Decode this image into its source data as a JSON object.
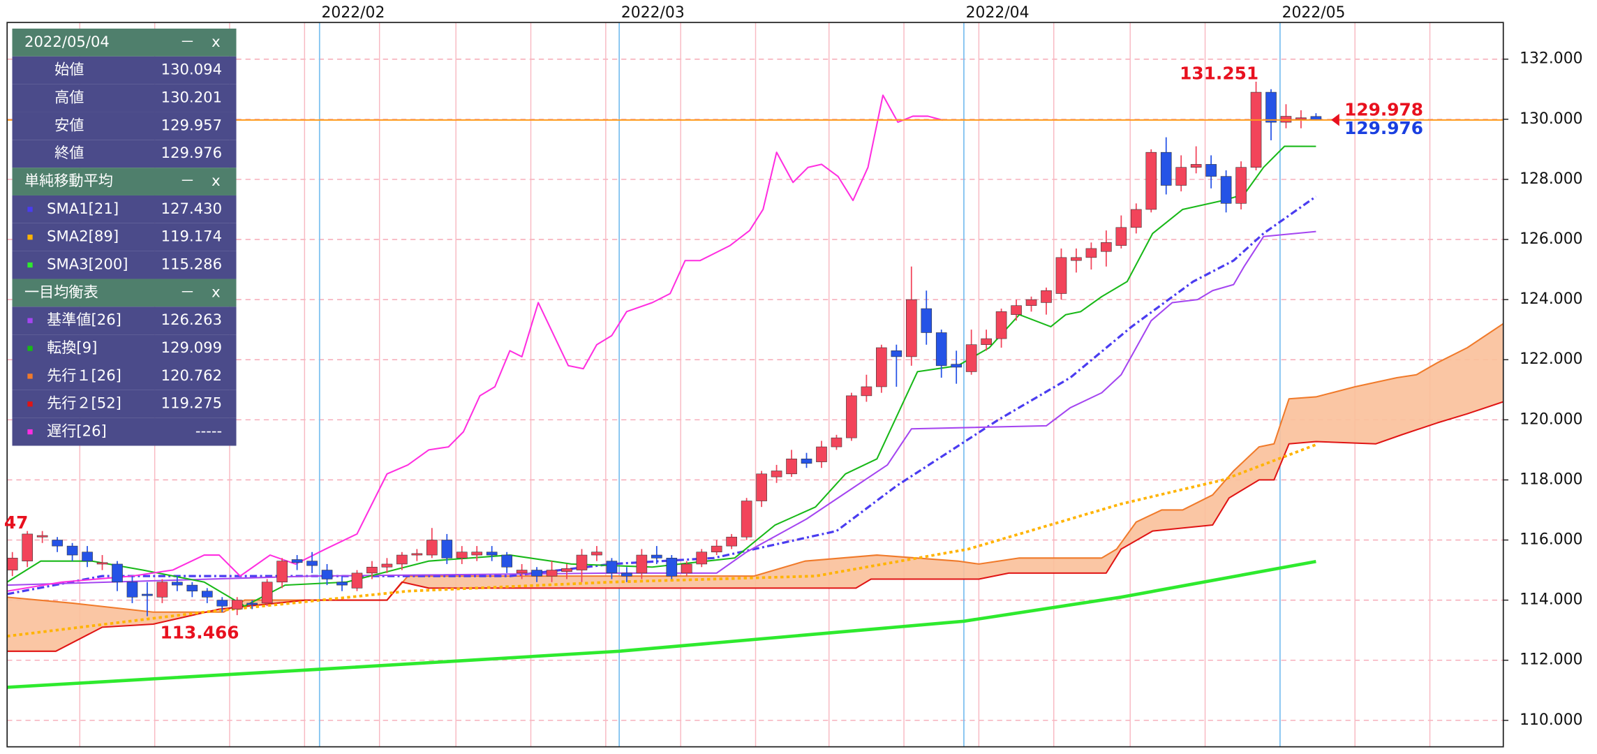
{
  "chart_data": {
    "type": "candlestick",
    "up_color": "#f2445a",
    "down_color": "#2553e6",
    "grid": true,
    "xlim": [
      -0.35,
      99.5
    ],
    "ylim": [
      109.12,
      133.22
    ],
    "xticks": [
      {
        "value": 20.5,
        "label": "2022/02"
      },
      {
        "value": 40.5,
        "label": "2022/03"
      },
      {
        "value": 63.5,
        "label": "2022/04"
      },
      {
        "value": 84.6,
        "label": "2022/05"
      }
    ],
    "xgrid": [
      4.5,
      9.5,
      14.5,
      19.5,
      24.5,
      29.6,
      34.6,
      39.6,
      44.6,
      49.6,
      54.5,
      59.5,
      64.5,
      69.5,
      74.6,
      79.6,
      89.6,
      94.6
    ],
    "yticks": [
      {
        "value": 110,
        "label": "110.000"
      },
      {
        "value": 112,
        "label": "112.000"
      },
      {
        "value": 114,
        "label": "114.000"
      },
      {
        "value": 116,
        "label": "116.000"
      },
      {
        "value": 118,
        "label": "118.000"
      },
      {
        "value": 120,
        "label": "120.000"
      },
      {
        "value": 122,
        "label": "122.000"
      },
      {
        "value": 124,
        "label": "124.000"
      },
      {
        "value": 126,
        "label": "126.000"
      },
      {
        "value": 128,
        "label": "128.000"
      },
      {
        "value": 130,
        "label": "130.000"
      },
      {
        "value": 132,
        "label": "132.000"
      }
    ],
    "x": [
      0,
      1,
      2,
      3,
      4,
      5,
      6,
      7,
      8,
      9,
      10,
      11,
      12,
      13,
      14,
      15,
      16,
      17,
      18,
      19,
      20,
      21,
      22,
      23,
      24,
      25,
      26,
      27,
      28,
      29,
      30,
      31,
      32,
      33,
      34,
      35,
      36,
      37,
      38,
      39,
      40,
      41,
      42,
      43,
      44,
      45,
      46,
      47,
      48,
      49,
      50,
      51,
      52,
      53,
      54,
      55,
      56,
      57,
      58,
      59,
      60,
      61,
      62,
      63,
      64,
      65,
      66,
      67,
      68,
      69,
      70,
      71,
      72,
      73,
      74,
      75,
      76,
      77,
      78,
      79,
      80,
      81,
      82,
      83,
      84,
      85,
      86,
      87
    ],
    "open": [
      115.0,
      115.3,
      116.1,
      116.0,
      115.8,
      115.6,
      115.2,
      115.2,
      114.6,
      114.2,
      114.1,
      114.6,
      114.5,
      114.3,
      114.0,
      113.7,
      113.9,
      113.9,
      114.6,
      115.35,
      115.3,
      115.0,
      114.6,
      114.4,
      114.9,
      115.1,
      115.2,
      115.5,
      115.5,
      116.0,
      115.4,
      115.5,
      115.6,
      115.5,
      114.9,
      115.0,
      114.8,
      114.95,
      115.0,
      115.5,
      115.3,
      114.9,
      114.9,
      115.5,
      115.4,
      114.9,
      115.2,
      115.6,
      115.8,
      116.1,
      117.3,
      118.1,
      118.2,
      118.7,
      118.6,
      119.1,
      119.4,
      120.8,
      121.1,
      122.3,
      122.1,
      123.7,
      122.9,
      121.85,
      121.6,
      122.5,
      122.7,
      123.5,
      123.8,
      123.9,
      124.2,
      125.3,
      125.4,
      125.6,
      125.8,
      126.4,
      127.0,
      128.9,
      127.8,
      128.4,
      128.5,
      128.1,
      127.2,
      128.4,
      130.9,
      129.9,
      130.0,
      130.094
    ],
    "high": [
      115.6,
      116.3,
      116.3,
      116.1,
      115.9,
      115.8,
      115.5,
      115.3,
      114.8,
      114.6,
      114.7,
      114.8,
      114.6,
      114.4,
      114.1,
      114.1,
      114.0,
      114.7,
      115.4,
      115.5,
      115.6,
      115.2,
      114.8,
      115.0,
      115.3,
      115.4,
      115.6,
      115.7,
      116.4,
      116.2,
      115.8,
      115.8,
      115.8,
      115.6,
      115.2,
      115.1,
      115.3,
      115.2,
      115.7,
      115.8,
      115.4,
      115.1,
      115.7,
      115.8,
      115.5,
      115.3,
      115.7,
      116.0,
      116.2,
      117.4,
      118.3,
      118.5,
      119.0,
      118.9,
      119.3,
      119.5,
      120.9,
      121.5,
      122.5,
      122.5,
      125.1,
      124.3,
      123.0,
      122.3,
      123.0,
      123.0,
      123.7,
      124.0,
      124.1,
      124.4,
      125.7,
      125.7,
      125.9,
      126.3,
      126.8,
      127.2,
      129.0,
      129.4,
      128.8,
      129.1,
      128.8,
      128.3,
      128.6,
      131.251,
      131.0,
      130.5,
      130.3,
      130.201
    ],
    "low": [
      114.8,
      115.1,
      115.9,
      115.6,
      115.3,
      115.1,
      115.0,
      114.3,
      113.9,
      113.466,
      113.9,
      114.3,
      114.1,
      113.9,
      113.6,
      113.5,
      113.7,
      113.8,
      114.4,
      115.0,
      114.9,
      114.5,
      114.3,
      114.3,
      114.7,
      114.9,
      115.0,
      115.3,
      115.4,
      115.2,
      115.2,
      115.3,
      115.3,
      114.9,
      114.7,
      114.6,
      114.6,
      114.7,
      114.6,
      115.3,
      114.7,
      114.6,
      114.7,
      115.2,
      114.7,
      114.8,
      115.1,
      115.5,
      115.7,
      116.0,
      117.1,
      117.9,
      118.1,
      118.4,
      118.4,
      119.0,
      119.3,
      120.6,
      120.9,
      121.1,
      121.8,
      122.5,
      121.4,
      121.2,
      121.5,
      122.3,
      122.4,
      123.3,
      123.6,
      123.5,
      124.0,
      124.9,
      125.0,
      125.1,
      125.7,
      126.2,
      126.9,
      127.5,
      127.6,
      128.2,
      127.7,
      126.9,
      127.0,
      128.3,
      129.3,
      129.7,
      129.7,
      129.957
    ],
    "close": [
      115.4,
      116.2,
      116.15,
      115.8,
      115.5,
      115.3,
      115.25,
      114.6,
      114.1,
      114.15,
      114.6,
      114.5,
      114.3,
      114.1,
      113.8,
      114.0,
      113.85,
      114.6,
      115.3,
      115.25,
      115.15,
      114.7,
      114.5,
      114.9,
      115.1,
      115.2,
      115.5,
      115.55,
      116.0,
      115.4,
      115.6,
      115.6,
      115.5,
      115.1,
      115.0,
      114.8,
      115.0,
      115.05,
      115.5,
      115.6,
      114.9,
      114.8,
      115.5,
      115.4,
      114.8,
      115.2,
      115.6,
      115.8,
      116.1,
      117.3,
      118.2,
      118.3,
      118.7,
      118.55,
      119.1,
      119.4,
      120.8,
      121.1,
      122.4,
      122.1,
      124.0,
      122.9,
      121.8,
      121.75,
      122.5,
      122.7,
      123.6,
      123.8,
      124.0,
      124.3,
      125.4,
      125.4,
      125.7,
      125.9,
      126.4,
      127.0,
      128.9,
      127.8,
      128.4,
      128.5,
      128.1,
      127.2,
      128.4,
      130.9,
      129.9,
      130.1,
      130.05,
      129.976
    ],
    "cloud_color": "#f9c09a",
    "series": [
      {
        "name": "SMA1[21]",
        "color": "#4a3cf0",
        "style": "dashdot",
        "width": 2.2,
        "x": [
          -0.35,
          6,
          19.6,
          33.2,
          40,
          46.8,
          55,
          59,
          62.4,
          65.8,
          70.6,
          74.7,
          78.8,
          81.5,
          83.5,
          87
        ],
        "values": [
          114.2,
          114.8,
          114.8,
          114.8,
          115.2,
          115.4,
          116.3,
          117.8,
          118.9,
          120.0,
          121.4,
          123.1,
          124.6,
          125.3,
          126.2,
          127.43
        ]
      },
      {
        "name": "SMA2[89]",
        "color": "#ffb300",
        "style": "dotted",
        "width": 2.6,
        "x": [
          -0.35,
          12.8,
          26.4,
          40,
          53.6,
          63.8,
          74,
          80.8,
          87
        ],
        "values": [
          112.8,
          113.6,
          114.3,
          114.6,
          114.8,
          115.7,
          117.2,
          118.0,
          119.174
        ]
      },
      {
        "name": "SMA3[200]",
        "color": "#2eea2e",
        "style": "solid",
        "width": 3.2,
        "x": [
          -0.35,
          20.5,
          40.5,
          63.5,
          74,
          87
        ],
        "values": [
          111.1,
          111.7,
          112.3,
          113.3,
          114.1,
          115.286
        ]
      },
      {
        "name": "基準値[26]",
        "color": "#a445f0",
        "style": "solid",
        "width": 1.4,
        "x": [
          -0.35,
          20,
          40,
          47,
          49,
          53,
          56.3,
          58.4,
          60,
          69,
          70.6,
          72.7,
          74,
          76,
          77.4,
          79.1,
          80.1,
          81.5,
          82.2,
          83.5,
          87
        ],
        "values": [
          114.5,
          114.8,
          114.9,
          114.9,
          115.6,
          116.7,
          117.8,
          118.5,
          119.7,
          119.8,
          120.4,
          120.9,
          121.5,
          123.3,
          123.9,
          124.0,
          124.3,
          124.5,
          125.1,
          126.1,
          126.263
        ]
      },
      {
        "name": "転換[9]",
        "color": "#18b818",
        "style": "solid",
        "width": 1.4,
        "x": [
          -0.35,
          1.9,
          5.3,
          8.7,
          12.8,
          15.5,
          18.2,
          22.3,
          27.8,
          33.2,
          37.3,
          42.7,
          48.2,
          50.9,
          53.6,
          55.6,
          57.7,
          59.0,
          60.4,
          63.1,
          65.2,
          67.2,
          69.3,
          70.3,
          71.3,
          72.7,
          74.4,
          76.1,
          78.1,
          80.8,
          82.2,
          83.5,
          84.9,
          87
        ],
        "values": [
          114.6,
          115.3,
          115.3,
          115.0,
          114.6,
          113.8,
          114.5,
          114.6,
          115.3,
          115.5,
          115.2,
          115.1,
          115.4,
          116.5,
          117.1,
          118.2,
          118.7,
          120.1,
          121.6,
          121.8,
          122.4,
          123.5,
          123.1,
          123.5,
          123.6,
          124.1,
          124.6,
          126.2,
          127.0,
          127.3,
          127.5,
          128.4,
          129.1,
          129.099
        ]
      },
      {
        "name": "先行１[26]",
        "color": "#f07a2a",
        "style": "solid",
        "width": 1.4,
        "x": [
          -0.35,
          4,
          9.4,
          14.1,
          15.5,
          19.6,
          25,
          26.4,
          49.5,
          52.9,
          57.7,
          63.1,
          64.5,
          67.2,
          72.7,
          73.7,
          75,
          76.7,
          78.1,
          80.1,
          81.5,
          83.2,
          84.2,
          85.2,
          87,
          89.6,
          92.4,
          93.7,
          95.1,
          97.1,
          99.5
        ],
        "values": [
          114.1,
          113.9,
          113.6,
          113.6,
          114.0,
          114.0,
          114.0,
          114.8,
          114.8,
          115.3,
          115.5,
          115.3,
          115.2,
          115.4,
          115.4,
          115.7,
          116.6,
          117.0,
          117.0,
          117.5,
          118.3,
          119.1,
          119.2,
          120.7,
          120.762,
          121.1,
          121.4,
          121.5,
          121.9,
          122.4,
          123.2
        ]
      },
      {
        "name": "先行２[52]",
        "color": "#e01414",
        "style": "solid",
        "width": 1.4,
        "x": [
          -0.35,
          2.9,
          6,
          9.4,
          13.8,
          19.6,
          25,
          26,
          27.8,
          56.3,
          57.3,
          64.5,
          66.5,
          73,
          74,
          76.1,
          80.1,
          81.2,
          83.2,
          84.2,
          85.2,
          87,
          91,
          92.7,
          95.1,
          97.1,
          99.5
        ],
        "values": [
          112.3,
          112.3,
          113.1,
          113.2,
          113.7,
          114.0,
          114.0,
          114.6,
          114.4,
          114.4,
          114.7,
          114.7,
          114.9,
          114.9,
          115.7,
          116.3,
          116.5,
          117.4,
          118.0,
          118.0,
          119.2,
          119.275,
          119.2,
          119.5,
          119.9,
          120.2,
          120.6
        ]
      },
      {
        "name": "遅行[26]",
        "color": "#ff2ee0",
        "style": "solid",
        "width": 1.4,
        "x": [
          -0.35,
          3.3,
          8,
          10.7,
          12.8,
          13.8,
          15.2,
          17.2,
          18.9,
          20.9,
          23,
          25,
          26.4,
          27.8,
          29.1,
          30.1,
          31.2,
          32.2,
          33.2,
          34,
          35.1,
          37.1,
          38.1,
          39,
          40,
          41,
          42.7,
          43.9,
          44.9,
          45.9,
          47.9,
          49.2,
          50.1,
          51,
          52.1,
          53.1,
          54,
          55.1,
          56.1,
          57.1,
          58.1,
          59.1,
          60.1,
          61.1,
          62.1
        ],
        "values": [
          114.3,
          114.6,
          114.8,
          115.0,
          115.5,
          115.5,
          114.8,
          115.5,
          115.2,
          115.7,
          116.2,
          118.2,
          118.5,
          119.0,
          119.1,
          119.6,
          120.8,
          121.1,
          122.3,
          122.1,
          123.9,
          121.8,
          121.7,
          122.5,
          122.8,
          123.6,
          123.9,
          124.2,
          125.3,
          125.3,
          125.8,
          126.3,
          127.0,
          128.9,
          127.9,
          128.4,
          128.5,
          128.1,
          127.3,
          128.4,
          130.8,
          129.9,
          130.1,
          130.1,
          129.97
        ]
      }
    ],
    "price": {
      "bid": 129.976,
      "ask": 129.978,
      "line_color": "#ff9a1a"
    },
    "annotations": [
      {
        "text": "47"
      }
    ]
  },
  "panel": {
    "date": "2022/05/04",
    "minimize": "－",
    "close": "x",
    "ohlc_labels": [
      "始値",
      "高値",
      "安値",
      "終値"
    ],
    "sma_title": "単純移動平均",
    "sma_values": [
      "127.430",
      "119.174",
      "115.286"
    ],
    "ichimoku_title": "一目均衡表",
    "ichimoku_values": [
      "126.263",
      "129.099",
      "120.762",
      "119.275",
      "-----"
    ]
  }
}
